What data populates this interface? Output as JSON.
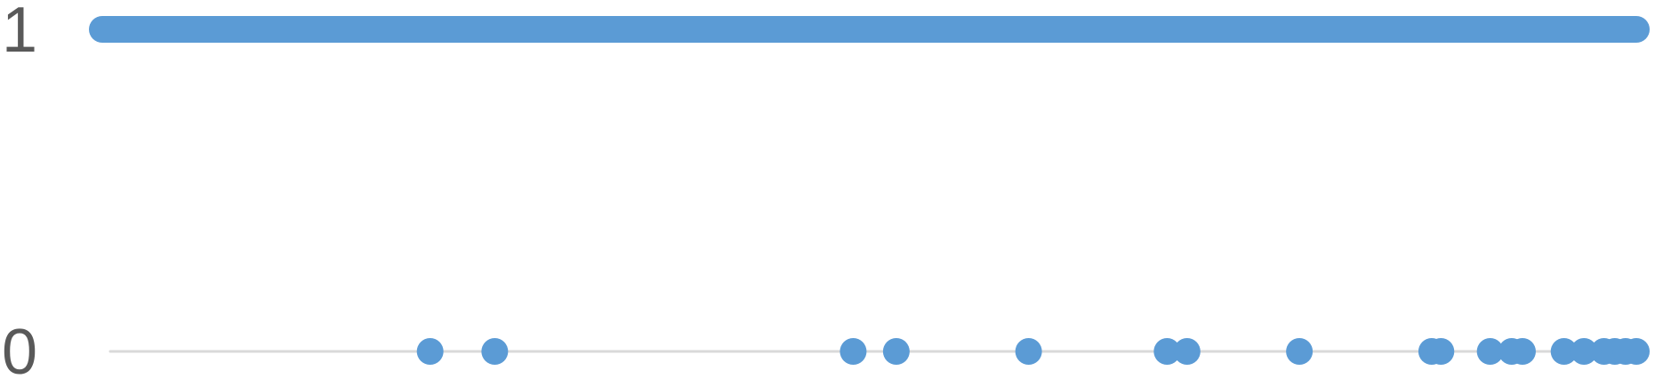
{
  "chart_data": {
    "type": "scatter",
    "title": "",
    "xlabel": "",
    "ylabel": "",
    "y_ticks": [
      "0",
      "1"
    ],
    "ylim": [
      0,
      1
    ],
    "xlim": [
      0,
      100
    ],
    "grid": false,
    "colors": {
      "series": "#5b9bd5",
      "baseline": "#d9d9d9",
      "tick_text": "#595959"
    },
    "series": [
      {
        "values_at_1": {
          "segment": [
            0,
            100
          ]
        },
        "points_at_0": [
          21.6,
          25.8,
          49.1,
          51.9,
          60.5,
          69.5,
          70.8,
          78.1,
          86.7,
          87.3,
          90.5,
          91.9,
          92.6,
          95.3,
          96.6,
          97.9,
          98.6,
          99.3,
          100
        ]
      }
    ]
  }
}
